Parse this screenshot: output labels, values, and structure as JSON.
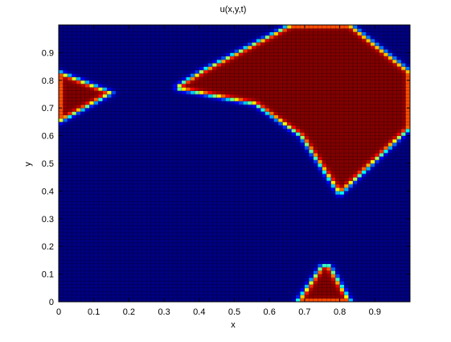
{
  "chart_data": {
    "type": "heatmap",
    "title": "u(x,y,t)",
    "xlabel": "x",
    "ylabel": "y",
    "xlim": [
      0,
      1
    ],
    "ylim": [
      0,
      1
    ],
    "x_ticks": [
      "0",
      "0.1",
      "0.2",
      "0.3",
      "0.4",
      "0.5",
      "0.6",
      "0.7",
      "0.8",
      "0.9"
    ],
    "y_ticks": [
      "0",
      "0.1",
      "0.2",
      "0.3",
      "0.4",
      "0.5",
      "0.6",
      "0.7",
      "0.8",
      "0.9"
    ],
    "grid_size": [
      80,
      80
    ],
    "colormap": "jet",
    "colors": {
      "low": "#00008f",
      "high": "#800000",
      "grid_line": "#000000",
      "background": "#ffffff"
    },
    "regions": [
      {
        "label": "high-left-wedge",
        "polygon": [
          [
            0.0,
            0.83
          ],
          [
            0.15,
            0.755
          ],
          [
            0.0,
            0.65
          ]
        ]
      },
      {
        "label": "high-large-shape",
        "polygon": [
          [
            0.34,
            0.78
          ],
          [
            0.41,
            0.835
          ],
          [
            0.66,
            1.0
          ],
          [
            0.83,
            1.0
          ],
          [
            1.0,
            0.83
          ],
          [
            1.0,
            0.63
          ],
          [
            0.8,
            0.39
          ],
          [
            0.69,
            0.6
          ],
          [
            0.56,
            0.715
          ],
          [
            0.34,
            0.77
          ]
        ]
      },
      {
        "label": "high-bottom-peak",
        "polygon": [
          [
            0.68,
            0.0
          ],
          [
            0.75,
            0.13
          ],
          [
            0.77,
            0.13
          ],
          [
            0.83,
            0.0
          ]
        ]
      }
    ]
  }
}
